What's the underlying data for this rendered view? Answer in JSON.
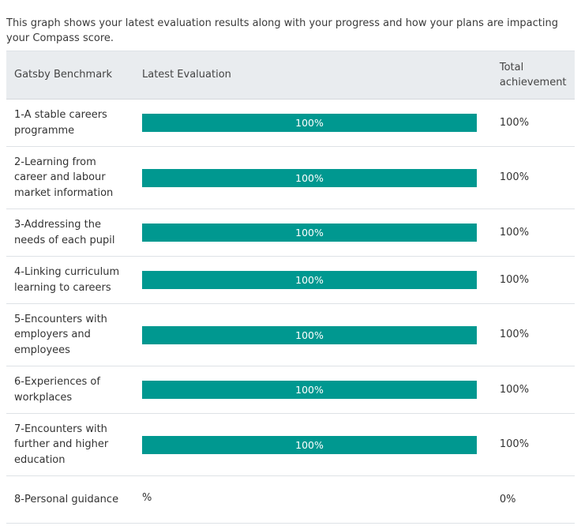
{
  "intro_text": "This graph shows your latest evaluation results along with your progress and how your plans are impacting your Compass score.",
  "table": {
    "headers": {
      "benchmark": "Gatsby Benchmark",
      "latest": "Latest Evaluation",
      "total": "Total achievement"
    },
    "rows": [
      {
        "name": "1-A stable careers programme",
        "value": 100,
        "bar_label": "100%",
        "total": "100%"
      },
      {
        "name": "2-Learning from career and labour market information",
        "value": 100,
        "bar_label": "100%",
        "total": "100%"
      },
      {
        "name": "3-Addressing the needs of each pupil",
        "value": 100,
        "bar_label": "100%",
        "total": "100%"
      },
      {
        "name": "4-Linking curriculum learning to careers",
        "value": 100,
        "bar_label": "100%",
        "total": "100%"
      },
      {
        "name": "5-Encounters with employers and employees",
        "value": 100,
        "bar_label": "100%",
        "total": "100%"
      },
      {
        "name": "6-Experiences of workplaces",
        "value": 100,
        "bar_label": "100%",
        "total": "100%"
      },
      {
        "name": "7-Encounters with further and higher education",
        "value": 100,
        "bar_label": "100%",
        "total": "100%"
      },
      {
        "name": "8-Personal guidance",
        "value": null,
        "bar_label": "%",
        "total": "0%"
      }
    ]
  },
  "colors": {
    "bar": "#009890",
    "header_bg": "#e9ecef"
  }
}
